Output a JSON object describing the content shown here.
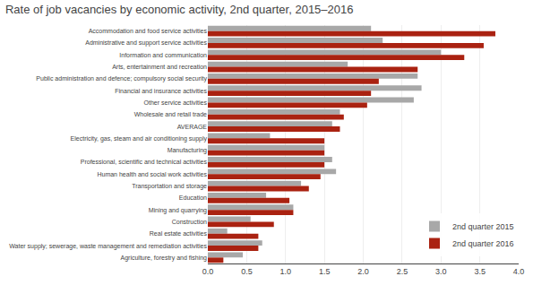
{
  "chart_data": {
    "type": "bar",
    "orientation": "horizontal",
    "title": "Rate of job vacancies by economic activity, 2nd quarter, 2015–2016",
    "categories": [
      "Accommodation and food service activities",
      "Administrative and support service activities",
      "Information and communication",
      "Arts, entertainment and recreation",
      "Public administration and defence; compulsory social security",
      "Financial and insurance activities",
      "Other service activities",
      "Wholesale and retail trade",
      "AVERAGE",
      "Electricity, gas, steam and air conditioning supply",
      "Manufacturing",
      "Professional, scientific and technical activities",
      "Human health and social work activities",
      "Transportation and storage",
      "Education",
      "Mining and quarrying",
      "Construction",
      "Real estate activities",
      "Water supply; sewerage, waste management and remediation activities",
      "Agriculture, forestry and fishing"
    ],
    "series": [
      {
        "name": "2nd quarter 2015",
        "color": "#a8a8a8",
        "values": [
          2.1,
          2.25,
          3.0,
          1.8,
          2.7,
          2.75,
          2.65,
          1.7,
          1.6,
          0.8,
          1.5,
          1.6,
          1.65,
          1.2,
          0.75,
          1.1,
          0.55,
          0.25,
          0.7,
          0.45
        ]
      },
      {
        "name": "2nd quarter 2016",
        "color": "#aa2211",
        "values": [
          3.7,
          3.55,
          3.3,
          2.7,
          2.2,
          2.1,
          2.05,
          1.75,
          1.7,
          1.5,
          1.5,
          1.5,
          1.45,
          1.3,
          1.05,
          1.1,
          0.85,
          0.65,
          0.65,
          0.2
        ]
      }
    ],
    "xlim": [
      0,
      4.0
    ],
    "xticks": [
      {
        "value": 0.0,
        "label": "0.0"
      },
      0.5,
      {
        "value": 1.0,
        "label": "1.0"
      },
      1.5,
      {
        "value": 2.0,
        "label": "2.0"
      },
      2.5,
      {
        "value": 3.0,
        "label": "3.0"
      },
      3.5,
      {
        "value": 4.0,
        "label": "4.0"
      }
    ],
    "grid": true,
    "legend": "lower right"
  }
}
